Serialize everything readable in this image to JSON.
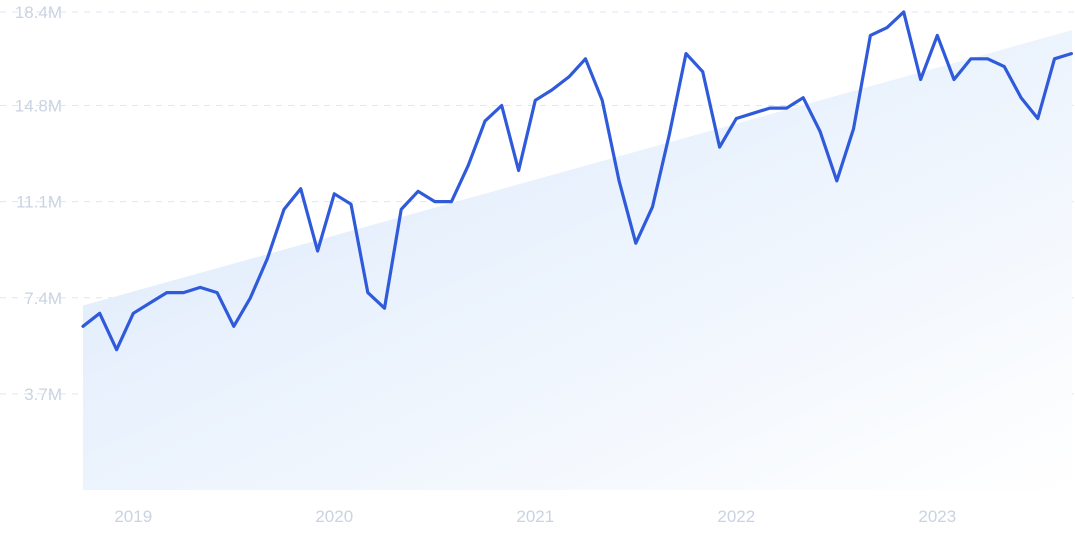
{
  "chart_data": {
    "type": "line",
    "title": "",
    "xlabel": "",
    "ylabel": "",
    "y_ticks": [
      "18.4M",
      "14.8M",
      "11.1M",
      "7.4M",
      "3.7M"
    ],
    "y_tick_values": [
      18.4,
      14.8,
      11.1,
      7.4,
      3.7
    ],
    "x_ticks": [
      "2019",
      "2020",
      "2021",
      "2022",
      "2023"
    ],
    "x_tick_values": [
      2019.0,
      2020.0,
      2021.0,
      2022.0,
      2023.0
    ],
    "ylim": [
      0,
      18.4
    ],
    "xlim": [
      2018.75,
      2023.67
    ],
    "unit": "M",
    "grid": true,
    "trend": {
      "x": [
        2018.75,
        2023.67
      ],
      "y": [
        7.1,
        17.7
      ]
    },
    "series": [
      {
        "name": "",
        "color": "#2f5bdb",
        "x": [
          2018.75,
          2018.833,
          2018.917,
          2019.0,
          2019.083,
          2019.167,
          2019.25,
          2019.333,
          2019.417,
          2019.5,
          2019.583,
          2019.667,
          2019.75,
          2019.833,
          2019.917,
          2020.0,
          2020.083,
          2020.167,
          2020.25,
          2020.333,
          2020.417,
          2020.5,
          2020.583,
          2020.667,
          2020.75,
          2020.833,
          2020.917,
          2021.0,
          2021.083,
          2021.167,
          2021.25,
          2021.333,
          2021.417,
          2021.5,
          2021.583,
          2021.667,
          2021.75,
          2021.833,
          2021.917,
          2022.0,
          2022.083,
          2022.167,
          2022.25,
          2022.333,
          2022.417,
          2022.5,
          2022.583,
          2022.667,
          2022.75,
          2022.833,
          2022.917,
          2023.0,
          2023.083,
          2023.167,
          2023.25,
          2023.333,
          2023.417,
          2023.5,
          2023.583,
          2023.667
        ],
        "y": [
          6.3,
          6.8,
          5.4,
          6.8,
          7.2,
          7.6,
          7.6,
          7.8,
          7.6,
          6.3,
          7.4,
          8.9,
          10.8,
          11.6,
          9.2,
          11.4,
          11.0,
          7.6,
          7.0,
          10.8,
          11.5,
          11.1,
          11.1,
          12.5,
          14.2,
          14.8,
          12.3,
          15.0,
          15.4,
          15.9,
          16.6,
          15.0,
          11.9,
          9.5,
          10.9,
          13.7,
          16.8,
          16.1,
          13.2,
          14.3,
          14.5,
          14.7,
          14.7,
          15.1,
          13.8,
          11.9,
          13.9,
          17.5,
          17.8,
          18.4,
          15.8,
          17.5,
          15.8,
          16.6,
          16.6,
          16.3,
          15.1,
          14.3,
          16.6,
          16.8
        ]
      }
    ]
  }
}
